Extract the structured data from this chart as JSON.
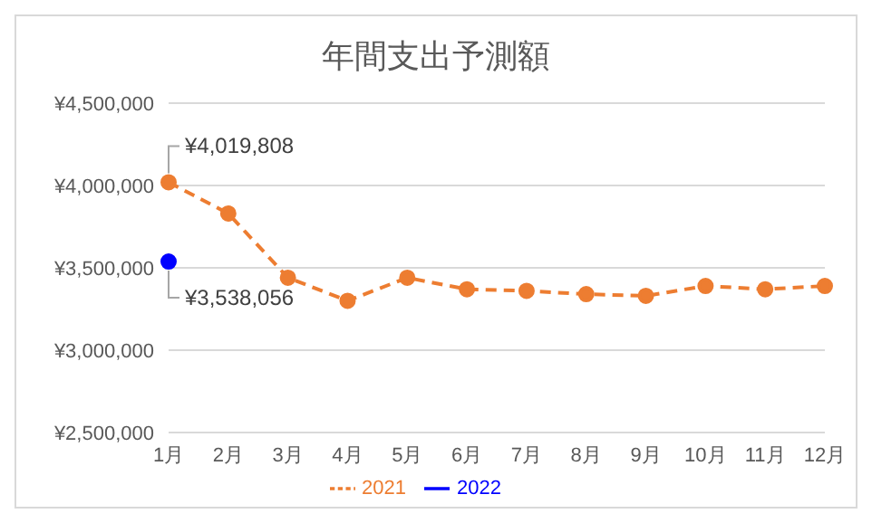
{
  "chart_data": {
    "type": "line",
    "title": "年間支出予測額",
    "categories": [
      "1月",
      "2月",
      "3月",
      "4月",
      "5月",
      "6月",
      "7月",
      "8月",
      "9月",
      "10月",
      "11月",
      "12月"
    ],
    "series": [
      {
        "name": "2021",
        "color": "#ed7d31",
        "line_style": "dashed",
        "values": [
          4019808,
          3830000,
          3440000,
          3300000,
          3440000,
          3370000,
          3360000,
          3340000,
          3330000,
          3390000,
          3370000,
          3390000
        ],
        "value_labels": [
          "¥4,019,808",
          null,
          null,
          null,
          null,
          null,
          null,
          null,
          null,
          null,
          null,
          null
        ]
      },
      {
        "name": "2022",
        "color": "#0000ff",
        "line_style": "solid",
        "values": [
          3538056,
          null,
          null,
          null,
          null,
          null,
          null,
          null,
          null,
          null,
          null,
          null
        ],
        "value_labels": [
          "¥3,538,056",
          null,
          null,
          null,
          null,
          null,
          null,
          null,
          null,
          null,
          null,
          null
        ]
      }
    ],
    "ylim": [
      2500000,
      4500000
    ],
    "yticks": [
      {
        "value": 2500000,
        "label": "¥2,500,000"
      },
      {
        "value": 3000000,
        "label": "¥3,000,000"
      },
      {
        "value": 3500000,
        "label": "¥3,500,000"
      },
      {
        "value": 4000000,
        "label": "¥4,000,000"
      },
      {
        "value": 4500000,
        "label": "¥4,500,000"
      }
    ],
    "grid": "y",
    "legend": "bottom",
    "marker": "circle"
  }
}
